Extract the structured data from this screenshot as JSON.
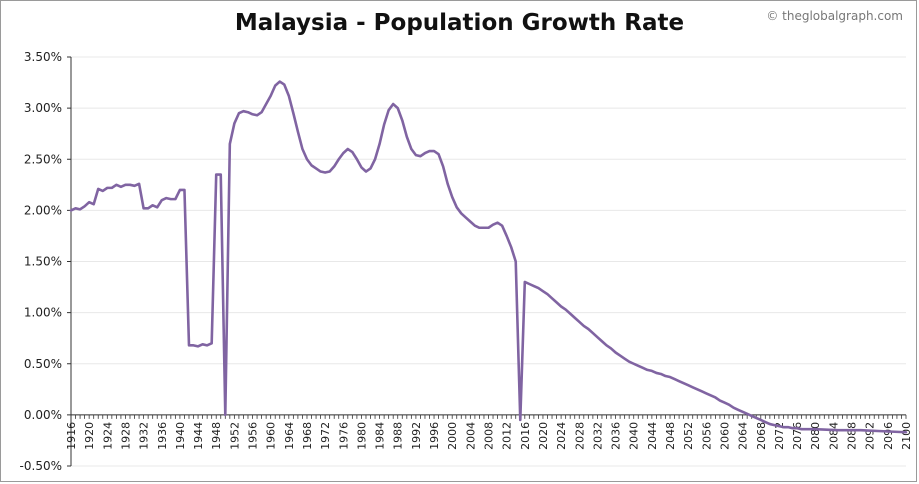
{
  "chart_data": {
    "type": "line",
    "title": "Malaysia - Population Growth Rate",
    "source": "© theglobalgraph.com",
    "xlabel": "",
    "ylabel": "",
    "xlim": [
      1916,
      2100
    ],
    "ylim": [
      -0.5,
      3.5
    ],
    "y_ticks": [
      "3.50%",
      "3.00%",
      "2.50%",
      "2.00%",
      "1.50%",
      "1.00%",
      "0.50%",
      "0.00%",
      "-0.50%"
    ],
    "y_tick_values": [
      3.5,
      3.0,
      2.5,
      2.0,
      1.5,
      1.0,
      0.5,
      0.0,
      -0.5
    ],
    "x_ticks": [
      "1916",
      "1920",
      "1924",
      "1928",
      "1932",
      "1936",
      "1940",
      "1944",
      "1948",
      "1952",
      "1956",
      "1960",
      "1964",
      "1968",
      "1972",
      "1976",
      "1980",
      "1984",
      "1988",
      "1992",
      "1996",
      "2000",
      "2004",
      "2008",
      "2012",
      "2016",
      "2020",
      "2024",
      "2028",
      "2032",
      "2036",
      "2040",
      "2044",
      "2048",
      "2052",
      "2056",
      "2060",
      "2064",
      "2068",
      "2072",
      "2076",
      "2080",
      "2084",
      "2088",
      "2092",
      "2096",
      "2100"
    ],
    "grid": true,
    "line_color": "#8064a2",
    "series": [
      {
        "name": "Population Growth Rate (%)",
        "points": [
          [
            1916,
            2.0
          ],
          [
            1917,
            2.02
          ],
          [
            1918,
            2.01
          ],
          [
            1919,
            2.04
          ],
          [
            1920,
            2.08
          ],
          [
            1921,
            2.06
          ],
          [
            1922,
            2.21
          ],
          [
            1923,
            2.19
          ],
          [
            1924,
            2.22
          ],
          [
            1925,
            2.22
          ],
          [
            1926,
            2.25
          ],
          [
            1927,
            2.23
          ],
          [
            1928,
            2.25
          ],
          [
            1929,
            2.25
          ],
          [
            1930,
            2.24
          ],
          [
            1931,
            2.26
          ],
          [
            1932,
            2.02
          ],
          [
            1933,
            2.02
          ],
          [
            1934,
            2.05
          ],
          [
            1935,
            2.03
          ],
          [
            1936,
            2.1
          ],
          [
            1937,
            2.12
          ],
          [
            1938,
            2.11
          ],
          [
            1939,
            2.11
          ],
          [
            1940,
            2.2
          ],
          [
            1941,
            2.2
          ],
          [
            1942,
            0.68
          ],
          [
            1943,
            0.68
          ],
          [
            1944,
            0.67
          ],
          [
            1945,
            0.69
          ],
          [
            1946,
            0.68
          ],
          [
            1947,
            0.7
          ],
          [
            1948,
            2.35
          ],
          [
            1949,
            2.35
          ],
          [
            1950,
            0.0
          ],
          [
            1951,
            2.65
          ],
          [
            1952,
            2.85
          ],
          [
            1953,
            2.95
          ],
          [
            1954,
            2.97
          ],
          [
            1955,
            2.96
          ],
          [
            1956,
            2.94
          ],
          [
            1957,
            2.93
          ],
          [
            1958,
            2.96
          ],
          [
            1959,
            3.04
          ],
          [
            1960,
            3.12
          ],
          [
            1961,
            3.22
          ],
          [
            1962,
            3.26
          ],
          [
            1963,
            3.23
          ],
          [
            1964,
            3.12
          ],
          [
            1965,
            2.95
          ],
          [
            1966,
            2.77
          ],
          [
            1967,
            2.6
          ],
          [
            1968,
            2.5
          ],
          [
            1969,
            2.44
          ],
          [
            1970,
            2.41
          ],
          [
            1971,
            2.38
          ],
          [
            1972,
            2.37
          ],
          [
            1973,
            2.38
          ],
          [
            1974,
            2.43
          ],
          [
            1975,
            2.5
          ],
          [
            1976,
            2.56
          ],
          [
            1977,
            2.6
          ],
          [
            1978,
            2.57
          ],
          [
            1979,
            2.5
          ],
          [
            1980,
            2.42
          ],
          [
            1981,
            2.38
          ],
          [
            1982,
            2.41
          ],
          [
            1983,
            2.5
          ],
          [
            1984,
            2.65
          ],
          [
            1985,
            2.84
          ],
          [
            1986,
            2.98
          ],
          [
            1987,
            3.04
          ],
          [
            1988,
            3.0
          ],
          [
            1989,
            2.88
          ],
          [
            1990,
            2.72
          ],
          [
            1991,
            2.6
          ],
          [
            1992,
            2.54
          ],
          [
            1993,
            2.53
          ],
          [
            1994,
            2.56
          ],
          [
            1995,
            2.58
          ],
          [
            1996,
            2.58
          ],
          [
            1997,
            2.55
          ],
          [
            1998,
            2.43
          ],
          [
            1999,
            2.26
          ],
          [
            2000,
            2.13
          ],
          [
            2001,
            2.03
          ],
          [
            2002,
            1.97
          ],
          [
            2003,
            1.93
          ],
          [
            2004,
            1.89
          ],
          [
            2005,
            1.85
          ],
          [
            2006,
            1.83
          ],
          [
            2007,
            1.83
          ],
          [
            2008,
            1.83
          ],
          [
            2009,
            1.86
          ],
          [
            2010,
            1.88
          ],
          [
            2011,
            1.85
          ],
          [
            2012,
            1.75
          ],
          [
            2013,
            1.64
          ],
          [
            2014,
            1.5
          ],
          [
            2015,
            -0.05
          ],
          [
            2016,
            1.3
          ],
          [
            2017,
            1.28
          ],
          [
            2018,
            1.26
          ],
          [
            2019,
            1.24
          ],
          [
            2020,
            1.21
          ],
          [
            2021,
            1.18
          ],
          [
            2022,
            1.14
          ],
          [
            2023,
            1.1
          ],
          [
            2024,
            1.06
          ],
          [
            2025,
            1.03
          ],
          [
            2026,
            0.99
          ],
          [
            2027,
            0.95
          ],
          [
            2028,
            0.91
          ],
          [
            2029,
            0.87
          ],
          [
            2030,
            0.84
          ],
          [
            2031,
            0.8
          ],
          [
            2032,
            0.76
          ],
          [
            2033,
            0.72
          ],
          [
            2034,
            0.68
          ],
          [
            2035,
            0.65
          ],
          [
            2036,
            0.61
          ],
          [
            2037,
            0.58
          ],
          [
            2038,
            0.55
          ],
          [
            2039,
            0.52
          ],
          [
            2040,
            0.5
          ],
          [
            2041,
            0.48
          ],
          [
            2042,
            0.46
          ],
          [
            2043,
            0.44
          ],
          [
            2044,
            0.43
          ],
          [
            2045,
            0.41
          ],
          [
            2046,
            0.4
          ],
          [
            2047,
            0.38
          ],
          [
            2048,
            0.37
          ],
          [
            2049,
            0.35
          ],
          [
            2050,
            0.33
          ],
          [
            2051,
            0.31
          ],
          [
            2052,
            0.29
          ],
          [
            2053,
            0.27
          ],
          [
            2054,
            0.25
          ],
          [
            2055,
            0.23
          ],
          [
            2056,
            0.21
          ],
          [
            2057,
            0.19
          ],
          [
            2058,
            0.17
          ],
          [
            2059,
            0.14
          ],
          [
            2060,
            0.12
          ],
          [
            2061,
            0.1
          ],
          [
            2062,
            0.07
          ],
          [
            2063,
            0.05
          ],
          [
            2064,
            0.03
          ],
          [
            2065,
            0.01
          ],
          [
            2066,
            -0.01
          ],
          [
            2067,
            -0.03
          ],
          [
            2068,
            -0.05
          ],
          [
            2069,
            -0.07
          ],
          [
            2070,
            -0.09
          ],
          [
            2071,
            -0.1
          ],
          [
            2072,
            -0.11
          ],
          [
            2073,
            -0.12
          ],
          [
            2074,
            -0.12
          ],
          [
            2075,
            -0.13
          ],
          [
            2076,
            -0.13
          ],
          [
            2077,
            -0.14
          ],
          [
            2078,
            -0.14
          ],
          [
            2080,
            -0.14
          ],
          [
            2085,
            -0.15
          ],
          [
            2090,
            -0.15
          ],
          [
            2095,
            -0.16
          ],
          [
            2100,
            -0.17
          ]
        ]
      }
    ]
  }
}
